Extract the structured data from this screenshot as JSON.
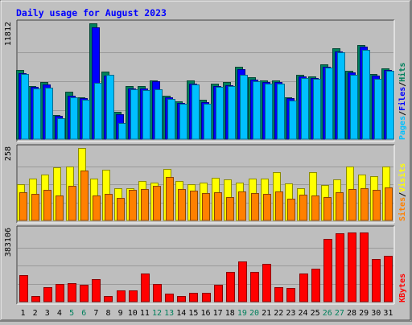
{
  "title": "Daily usage for August 2023",
  "colors": {
    "background": "#c0c0c0",
    "panel_bg": "#bebebe",
    "title": "#0000ff",
    "hits": "#00805c",
    "files": "#0000ff",
    "pages": "#00c0ff",
    "visits": "#ffff00",
    "sites": "#ff8000",
    "kbytes": "#ff0000",
    "weekend_label": "#00805c",
    "weekday_label": "#000000"
  },
  "chart_data": [
    {
      "type": "bar",
      "panel": "hits-files-pages",
      "ymax_label": "11812",
      "ylim": [
        0,
        11812
      ],
      "legend": [
        "Pages",
        "/",
        "Files",
        "/",
        "Hits"
      ],
      "categories": [
        "1",
        "2",
        "3",
        "4",
        "5",
        "6",
        "7",
        "8",
        "9",
        "10",
        "11",
        "12",
        "13",
        "14",
        "15",
        "16",
        "17",
        "18",
        "19",
        "20",
        "21",
        "22",
        "23",
        "24",
        "25",
        "26",
        "27",
        "28",
        "29",
        "30",
        "31"
      ],
      "series": [
        {
          "name": "Hits",
          "values": [
            7080,
            5440,
            5830,
            2490,
            4860,
            4290,
            11812,
            6880,
            2790,
            5440,
            5440,
            6000,
            4460,
            3820,
            6000,
            3980,
            5680,
            5830,
            7410,
            6280,
            5990,
            5990,
            4290,
            6590,
            6430,
            7600,
            9230,
            7000,
            9630,
            6660,
            7240
          ]
        },
        {
          "name": "Files",
          "values": [
            6740,
            5350,
            5540,
            2350,
            4440,
            4170,
            11400,
            6470,
            2530,
            5200,
            5180,
            5940,
            4230,
            3670,
            5660,
            3760,
            5430,
            5510,
            7170,
            6080,
            5830,
            5830,
            4150,
            6430,
            6270,
            7420,
            8940,
            6840,
            9410,
            6490,
            7080
          ]
        },
        {
          "name": "Pages",
          "values": [
            6610,
            5200,
            5240,
            2100,
            4290,
            4020,
            5780,
            6540,
            1680,
            5050,
            5020,
            5100,
            4080,
            3620,
            5560,
            3580,
            5360,
            5400,
            6580,
            5940,
            5680,
            5670,
            3940,
            6250,
            6120,
            7340,
            8840,
            6530,
            9080,
            6140,
            6980
          ]
        }
      ]
    },
    {
      "type": "bar",
      "panel": "visits-sites",
      "ymax_label": "258",
      "ylim": [
        0,
        258
      ],
      "legend": [
        "Sites",
        "/",
        "Visits"
      ],
      "categories": [
        "1",
        "2",
        "3",
        "4",
        "5",
        "6",
        "7",
        "8",
        "9",
        "10",
        "11",
        "12",
        "13",
        "14",
        "15",
        "16",
        "17",
        "18",
        "19",
        "20",
        "21",
        "22",
        "23",
        "24",
        "25",
        "26",
        "27",
        "28",
        "29",
        "30",
        "31"
      ],
      "series": [
        {
          "name": "Visits",
          "values": [
            130,
            150,
            164,
            190,
            193,
            258,
            149,
            180,
            115,
            116,
            140,
            134,
            183,
            140,
            128,
            136,
            153,
            146,
            136,
            150,
            150,
            172,
            132,
            116,
            173,
            127,
            147,
            193,
            162,
            157,
            193
          ]
        },
        {
          "name": "Sites",
          "values": [
            99,
            96,
            108,
            89,
            122,
            177,
            89,
            95,
            81,
            110,
            112,
            122,
            154,
            112,
            105,
            97,
            100,
            83,
            104,
            97,
            94,
            104,
            76,
            91,
            90,
            83,
            99,
            111,
            114,
            108,
            118
          ]
        }
      ]
    },
    {
      "type": "bar",
      "panel": "kbytes",
      "ymax_label": "383106",
      "ylim": [
        0,
        383106
      ],
      "legend": [
        "KBytes"
      ],
      "categories": [
        "1",
        "2",
        "3",
        "4",
        "5",
        "6",
        "7",
        "8",
        "9",
        "10",
        "11",
        "12",
        "13",
        "14",
        "15",
        "16",
        "17",
        "18",
        "19",
        "20",
        "21",
        "22",
        "23",
        "24",
        "25",
        "26",
        "27",
        "28",
        "29",
        "30",
        "31"
      ],
      "series": [
        {
          "name": "KBytes",
          "values": [
            142000,
            30000,
            77000,
            95000,
            97000,
            88000,
            121000,
            28000,
            59000,
            60000,
            148000,
            94000,
            42000,
            30000,
            48000,
            48000,
            88000,
            159000,
            211000,
            156000,
            200000,
            76000,
            72000,
            147000,
            175000,
            334000,
            361000,
            366000,
            366000,
            226000,
            243000
          ]
        }
      ]
    }
  ],
  "x_labels": [
    "1",
    "2",
    "3",
    "4",
    "5",
    "6",
    "7",
    "8",
    "9",
    "10",
    "11",
    "12",
    "13",
    "14",
    "15",
    "16",
    "17",
    "18",
    "19",
    "20",
    "21",
    "22",
    "23",
    "24",
    "25",
    "26",
    "27",
    "28",
    "29",
    "30",
    "31"
  ],
  "weekend_days": [
    "5",
    "6",
    "12",
    "13",
    "19",
    "20",
    "26",
    "27"
  ]
}
